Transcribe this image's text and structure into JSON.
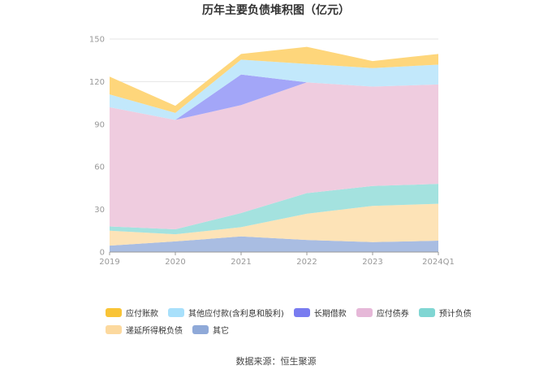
{
  "chart_data": {
    "type": "area",
    "stacked": true,
    "title": "历年主要负债堆积图（亿元）",
    "categories": [
      "2019",
      "2020",
      "2021",
      "2022",
      "2023",
      "2024Q1"
    ],
    "ylim": [
      0,
      150
    ],
    "yticks": [
      "0",
      "30",
      "60",
      "90",
      "120",
      "150"
    ],
    "grid": true,
    "legend_position": "bottom",
    "series": [
      {
        "name": "其它",
        "color": "#a9bde2",
        "values": [
          4.5,
          7.5,
          11,
          8.5,
          7,
          8
        ]
      },
      {
        "name": "递延所得税负债",
        "color": "#fde3b7",
        "values": [
          10.5,
          5,
          6.5,
          18.5,
          25.5,
          26
        ]
      },
      {
        "name": "预计负债",
        "color": "#a4e2df",
        "values": [
          3,
          3.5,
          10,
          14.5,
          14,
          14
        ]
      },
      {
        "name": "应付债券",
        "color": "#efccdf",
        "values": [
          84,
          77,
          76,
          78,
          70,
          70
        ]
      },
      {
        "name": "长期借款",
        "color": "#a3a6f8",
        "values": [
          0,
          0,
          21.5,
          0,
          0,
          0
        ]
      },
      {
        "name": "其他应付款(含利息和股利)",
        "color": "#c2e8fb",
        "values": [
          9,
          5,
          10.5,
          13,
          13,
          14
        ]
      },
      {
        "name": "应付账款",
        "color": "#fed67b",
        "values": [
          12.5,
          5,
          4,
          12,
          5,
          7.5
        ]
      }
    ],
    "legend_colors": {
      "应付账款": "#f9c436",
      "其他应付款(含利息和股利)": "#a8e0fb",
      "长期借款": "#797cf0",
      "应付债券": "#e6b8d8",
      "预计负债": "#80d6d3",
      "递延所得税负债": "#fcd99e",
      "其它": "#8fa9d8"
    },
    "legend_order": [
      [
        "应付账款",
        "其他应付款(含利息和股利)",
        "长期借款",
        "应付债券",
        "预计负债"
      ],
      [
        "递延所得税负债",
        "其它"
      ]
    ]
  },
  "source": "数据来源：恒生聚源"
}
